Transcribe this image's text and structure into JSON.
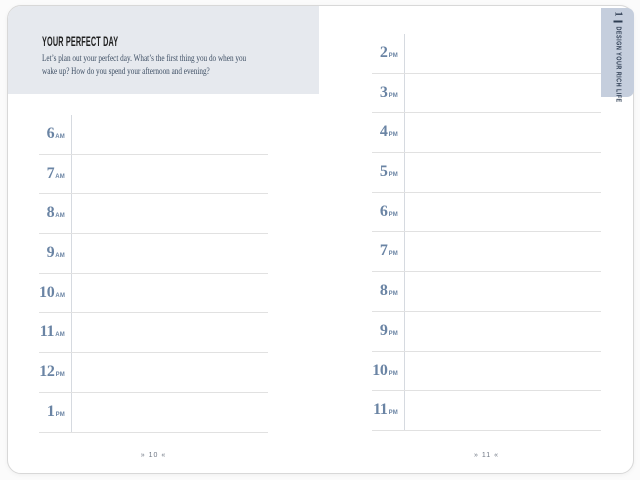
{
  "book": {
    "header": {
      "title": "YOUR PERFECT DAY",
      "description_lines": [
        "Let’s plan out your perfect day. What’s the first thing you do when you",
        "wake up? How do you spend your afternoon and evening?"
      ]
    },
    "left_page": {
      "rows": [
        {
          "hour": "6",
          "meridiem": "AM"
        },
        {
          "hour": "7",
          "meridiem": "AM"
        },
        {
          "hour": "8",
          "meridiem": "AM"
        },
        {
          "hour": "9",
          "meridiem": "AM"
        },
        {
          "hour": "10",
          "meridiem": "AM"
        },
        {
          "hour": "11",
          "meridiem": "AM"
        },
        {
          "hour": "12",
          "meridiem": "PM"
        },
        {
          "hour": "1",
          "meridiem": "PM"
        }
      ],
      "page_number": "» 10 «"
    },
    "right_page": {
      "rows": [
        {
          "hour": "2",
          "meridiem": "PM"
        },
        {
          "hour": "3",
          "meridiem": "PM"
        },
        {
          "hour": "4",
          "meridiem": "PM"
        },
        {
          "hour": "5",
          "meridiem": "PM"
        },
        {
          "hour": "6",
          "meridiem": "PM"
        },
        {
          "hour": "7",
          "meridiem": "PM"
        },
        {
          "hour": "8",
          "meridiem": "PM"
        },
        {
          "hour": "9",
          "meridiem": "PM"
        },
        {
          "hour": "10",
          "meridiem": "PM"
        },
        {
          "hour": "11",
          "meridiem": "PM"
        }
      ],
      "page_number": "» 11 «"
    },
    "side_tab": {
      "chapter_number": "1",
      "label": "DESIGN YOUR RICH LIFE"
    },
    "colors": {
      "accent_blue": "#6a84a4",
      "header_background": "#e6e9ee",
      "tab_background": "#c5cedd",
      "tab_text": "#2e3d52",
      "rule_line": "#e1e1e1"
    }
  }
}
